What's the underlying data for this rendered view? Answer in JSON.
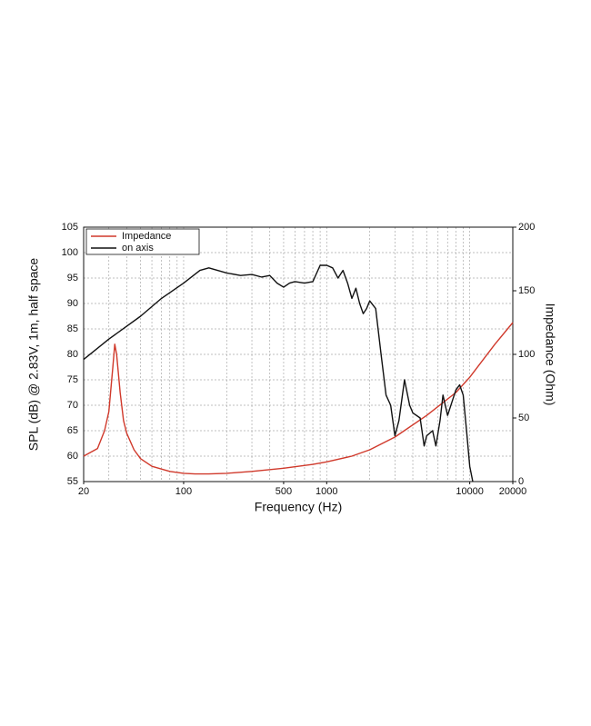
{
  "chart_data": {
    "type": "line",
    "x_label": "Frequency (Hz)",
    "y_label": "SPL (dB) @ 2.83V, 1m, half space",
    "y2_label": "Impedance (Ohm)",
    "log_x": true,
    "grid": true,
    "legend": "top-left",
    "xlim": [
      20,
      20000
    ],
    "xticks": [
      20,
      100,
      500,
      1000,
      10000,
      20000
    ],
    "xgrid": [
      20,
      30,
      40,
      50,
      60,
      70,
      80,
      90,
      100,
      200,
      300,
      400,
      500,
      600,
      700,
      800,
      900,
      1000,
      2000,
      3000,
      4000,
      5000,
      6000,
      7000,
      8000,
      9000,
      10000,
      20000
    ],
    "ylim": [
      55,
      105
    ],
    "yticks": [
      55,
      60,
      65,
      70,
      75,
      80,
      85,
      90,
      95,
      100,
      105
    ],
    "y2lim": [
      0,
      200
    ],
    "y2ticks": [
      0,
      50,
      100,
      150,
      200
    ],
    "series": [
      {
        "name": "Impedance",
        "color": "#d0392b",
        "axis": "y2",
        "x": [
          20,
          25,
          28,
          30,
          32,
          33,
          34,
          36,
          38,
          40,
          45,
          50,
          60,
          80,
          100,
          120,
          150,
          200,
          300,
          500,
          800,
          1000,
          1500,
          2000,
          3000,
          5000,
          8000,
          10000,
          15000,
          20000
        ],
        "values": [
          20,
          26,
          40,
          55,
          90,
          108,
          100,
          70,
          48,
          38,
          25,
          18,
          12,
          8,
          6.5,
          6,
          6,
          6.5,
          8,
          10.5,
          13.5,
          15.5,
          20,
          25,
          35,
          52,
          70,
          82,
          108,
          125
        ]
      },
      {
        "name": "on axis",
        "color": "#111111",
        "axis": "y",
        "x": [
          20,
          30,
          50,
          70,
          100,
          130,
          150,
          200,
          250,
          300,
          350,
          400,
          450,
          500,
          550,
          600,
          700,
          800,
          900,
          1000,
          1100,
          1200,
          1300,
          1400,
          1500,
          1600,
          1700,
          1800,
          1900,
          2000,
          2200,
          2400,
          2600,
          2800,
          3000,
          3200,
          3500,
          3800,
          4000,
          4500,
          4800,
          5000,
          5500,
          5800,
          6200,
          6500,
          7000,
          8000,
          8500,
          9000,
          9500,
          10000,
          10500
        ],
        "values": [
          79,
          83,
          87.5,
          91,
          94,
          96.5,
          97,
          96,
          95.5,
          95.7,
          95.2,
          95.5,
          94,
          93.2,
          94,
          94.3,
          94,
          94.3,
          97.5,
          97.5,
          97,
          95,
          96.5,
          94,
          91,
          93,
          90,
          88,
          89,
          90.5,
          89,
          80,
          72,
          70,
          64,
          67,
          75,
          70,
          68.5,
          67.5,
          62,
          64,
          65,
          62,
          67,
          72,
          68,
          73,
          74,
          72,
          65,
          58,
          55
        ]
      }
    ]
  }
}
